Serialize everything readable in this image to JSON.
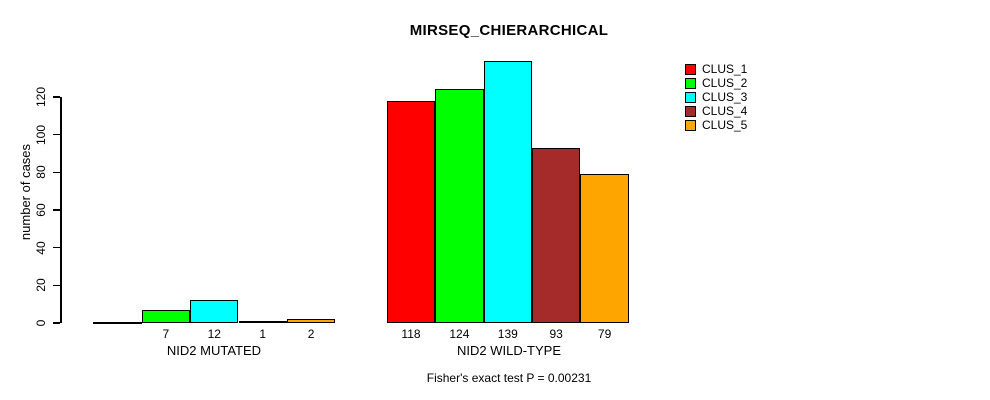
{
  "title": "MIRSEQ_CHIERARCHICAL",
  "y_axis": {
    "label": "number of cases",
    "ticks": [
      0,
      20,
      40,
      60,
      80,
      100,
      120
    ]
  },
  "footer": "Fisher's exact test P = 0.00231",
  "legend": {
    "items": [
      {
        "label": "CLUS_1",
        "color": "#ff0000"
      },
      {
        "label": "CLUS_2",
        "color": "#00ff00"
      },
      {
        "label": "CLUS_3",
        "color": "#00ffff"
      },
      {
        "label": "CLUS_4",
        "color": "#a52a2a"
      },
      {
        "label": "CLUS_5",
        "color": "#ffa500"
      }
    ]
  },
  "chart_data": {
    "type": "bar",
    "title": "MIRSEQ_CHIERARCHICAL",
    "xlabel": "",
    "ylabel": "number of cases",
    "ylim": [
      0,
      139
    ],
    "yticks": [
      0,
      20,
      40,
      60,
      80,
      100,
      120
    ],
    "grid": false,
    "legend_position": "top-right",
    "series_names": [
      "CLUS_1",
      "CLUS_2",
      "CLUS_3",
      "CLUS_4",
      "CLUS_5"
    ],
    "series_colors": [
      "#ff0000",
      "#00ff00",
      "#00ffff",
      "#a52a2a",
      "#ffa500"
    ],
    "groups": [
      {
        "label": "NID2 MUTATED",
        "values": [
          0,
          7,
          12,
          1,
          2
        ],
        "bar_labels": [
          "",
          "7",
          "12",
          "1",
          "2"
        ]
      },
      {
        "label": "NID2 WILD-TYPE",
        "values": [
          118,
          124,
          139,
          93,
          79
        ],
        "bar_labels": [
          "118",
          "124",
          "139",
          "93",
          "79"
        ]
      }
    ],
    "annotation": "Fisher's exact test P = 0.00231"
  }
}
